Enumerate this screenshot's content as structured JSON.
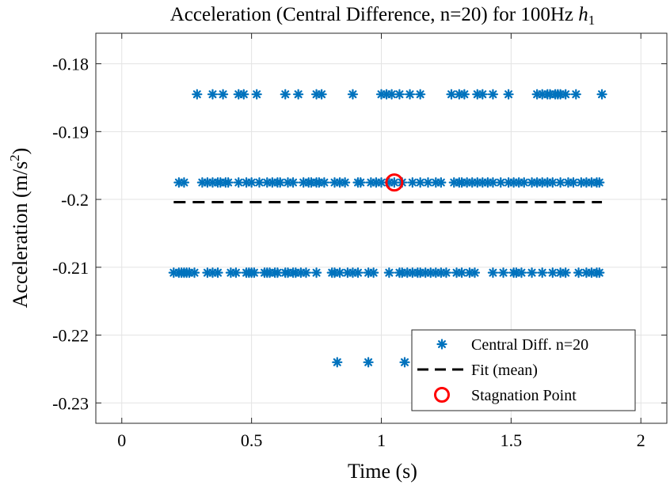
{
  "chart_data": {
    "type": "scatter",
    "title": "Acceleration (Central Difference, n=20) for 100Hz ",
    "title_var": "h",
    "title_sub": "1",
    "xlabel": "Time (s)",
    "ylabel_prefix": "Acceleration  (m/s",
    "ylabel_sup": "2",
    "ylabel_suffix": ")",
    "xlim": [
      -0.1,
      2.1
    ],
    "ylim": [
      -0.233,
      -0.1755
    ],
    "xticks": [
      0,
      0.5,
      1,
      1.5,
      2
    ],
    "xtick_labels": [
      "0",
      "0.5",
      "1",
      "1.5",
      "2"
    ],
    "yticks": [
      -0.18,
      -0.19,
      -0.2,
      -0.21,
      -0.22,
      -0.23
    ],
    "ytick_labels": [
      "-0.18",
      "-0.19",
      "-0.2",
      "-0.21",
      "-0.22",
      "-0.23"
    ],
    "grid": true,
    "legend_position": "bottom-right",
    "colors": {
      "points": "#0072BD",
      "fit": "#000000",
      "stagnation": "#FF0000"
    },
    "series": [
      {
        "name": "Central Diff. n=20",
        "marker": "asterisk",
        "levels": [
          {
            "y": -0.1845,
            "x": [
              0.29,
              0.35,
              0.39,
              0.45,
              0.47,
              0.52,
              0.63,
              0.68,
              0.75,
              0.77,
              0.89,
              1.0,
              1.02,
              1.04,
              1.07,
              1.11,
              1.15,
              1.27,
              1.3,
              1.32,
              1.37,
              1.39,
              1.43,
              1.49,
              1.6,
              1.62,
              1.64,
              1.65,
              1.67,
              1.68,
              1.69,
              1.71,
              1.75,
              1.85
            ]
          },
          {
            "y": -0.1975,
            "x": [
              0.22,
              0.24,
              0.31,
              0.33,
              0.35,
              0.37,
              0.38,
              0.4,
              0.41,
              0.45,
              0.48,
              0.5,
              0.53,
              0.56,
              0.58,
              0.6,
              0.61,
              0.64,
              0.66,
              0.7,
              0.72,
              0.73,
              0.75,
              0.76,
              0.78,
              0.82,
              0.84,
              0.86,
              0.91,
              0.92,
              0.96,
              0.98,
              1.0,
              1.03,
              1.05,
              1.08,
              1.12,
              1.15,
              1.18,
              1.21,
              1.23,
              1.28,
              1.3,
              1.31,
              1.33,
              1.35,
              1.37,
              1.39,
              1.41,
              1.43,
              1.46,
              1.49,
              1.51,
              1.53,
              1.55,
              1.58,
              1.6,
              1.62,
              1.64,
              1.66,
              1.69,
              1.72,
              1.74,
              1.77,
              1.79,
              1.81,
              1.83,
              1.84
            ]
          },
          {
            "y": -0.2108,
            "x": [
              0.2,
              0.22,
              0.23,
              0.24,
              0.25,
              0.26,
              0.28,
              0.33,
              0.35,
              0.37,
              0.42,
              0.44,
              0.48,
              0.49,
              0.5,
              0.51,
              0.55,
              0.56,
              0.57,
              0.59,
              0.6,
              0.63,
              0.64,
              0.66,
              0.67,
              0.69,
              0.71,
              0.75,
              0.81,
              0.82,
              0.84,
              0.87,
              0.89,
              0.91,
              0.95,
              0.97,
              1.03,
              1.07,
              1.08,
              1.1,
              1.12,
              1.14,
              1.15,
              1.17,
              1.19,
              1.21,
              1.23,
              1.25,
              1.29,
              1.31,
              1.34,
              1.36,
              1.43,
              1.47,
              1.51,
              1.52,
              1.54,
              1.58,
              1.62,
              1.66,
              1.69,
              1.71,
              1.76,
              1.79,
              1.81,
              1.83,
              1.84
            ]
          },
          {
            "y": -0.224,
            "x": [
              0.83,
              0.95,
              1.09
            ]
          }
        ]
      },
      {
        "name": "Fit (mean)",
        "type": "line",
        "x": [
          0.2,
          1.85
        ],
        "y": [
          -0.2004,
          -0.2004
        ]
      },
      {
        "name": "Stagnation Point",
        "marker": "circle",
        "x": [
          1.05
        ],
        "y": [
          -0.1975
        ]
      }
    ]
  }
}
